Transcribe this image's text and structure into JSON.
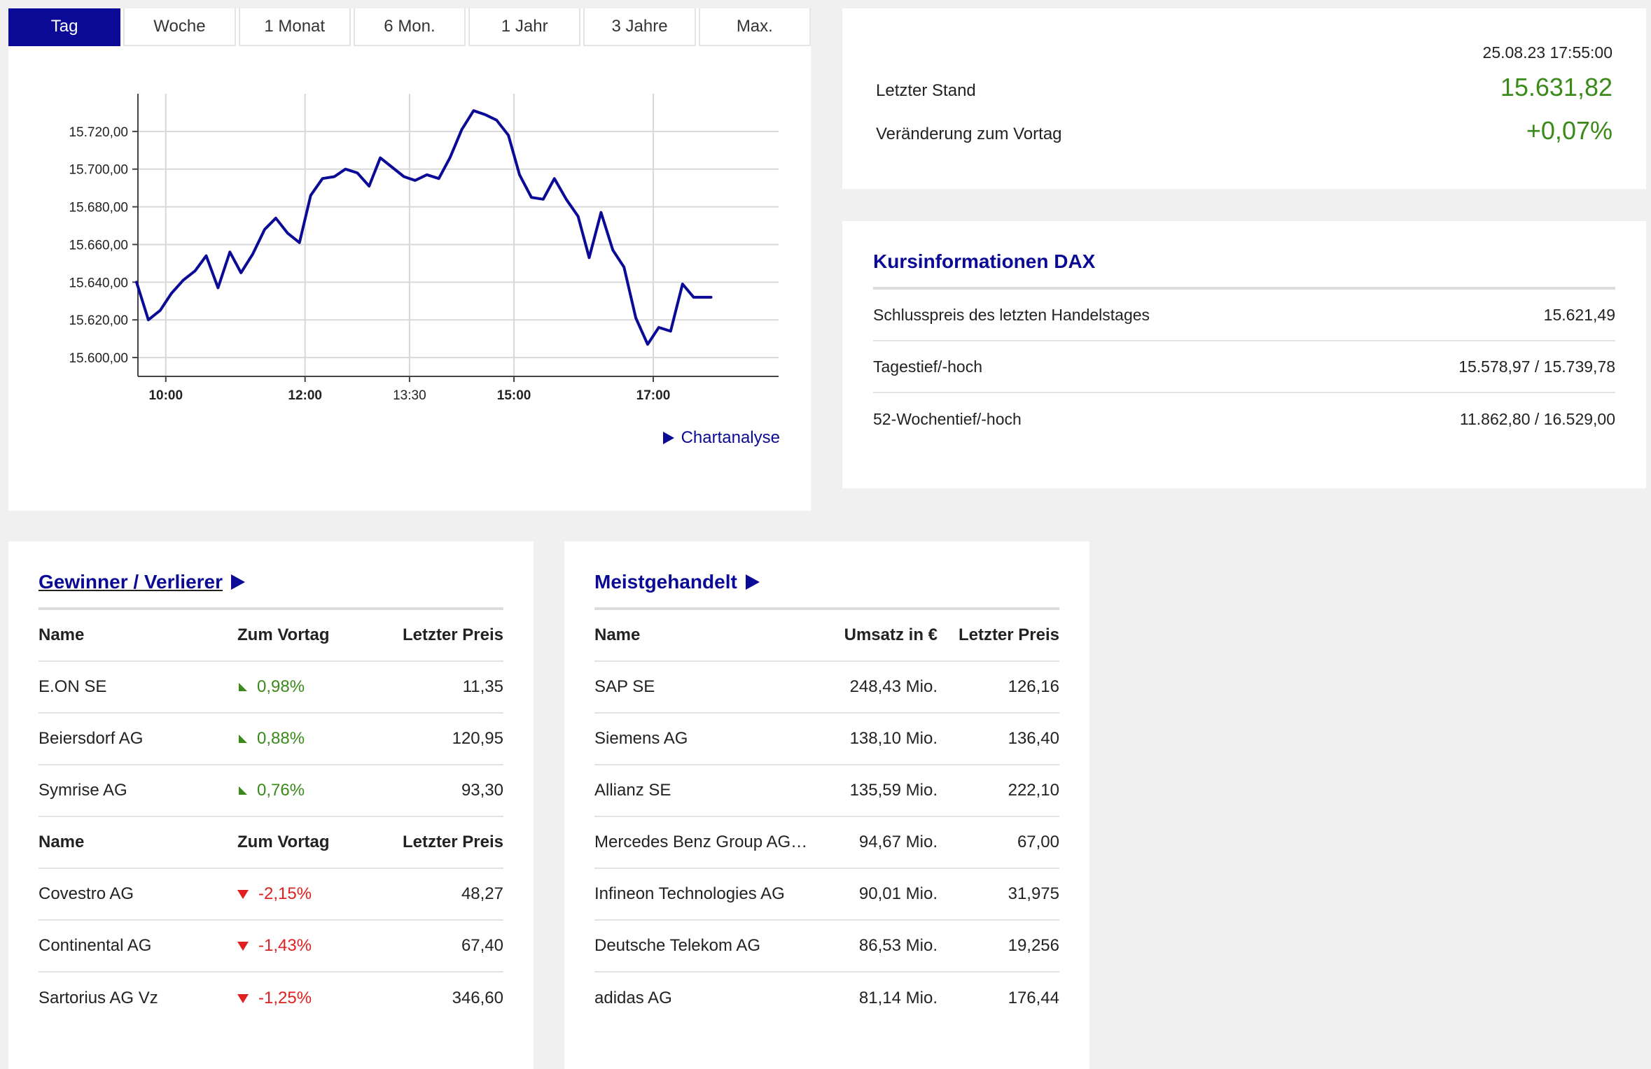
{
  "tabs": [
    "Tag",
    "Woche",
    "1 Monat",
    "6 Mon.",
    "1 Jahr",
    "3 Jahre",
    "Max."
  ],
  "active_tab": 0,
  "chartanalyse_label": "Chartanalyse",
  "chart_data": {
    "type": "line",
    "title": "",
    "xlabel": "",
    "ylabel": "",
    "series_color": "#0a0a96",
    "ylim": [
      15590,
      15740
    ],
    "xlim": [
      9.6,
      18.8
    ],
    "y_ticks": [
      15600,
      15620,
      15640,
      15660,
      15680,
      15700,
      15720
    ],
    "y_tick_labels": [
      "15.600,00",
      "15.620,00",
      "15.640,00",
      "15.660,00",
      "15.680,00",
      "15.700,00",
      "15.720,00"
    ],
    "x_ticks": [
      10,
      12,
      13.5,
      15,
      17
    ],
    "x_tick_labels": [
      "10:00",
      "12:00",
      "13:30",
      "15:00",
      "17:00"
    ],
    "x_tick_bold": [
      true,
      true,
      false,
      true,
      true
    ],
    "grid": true,
    "x": [
      9.58,
      9.75,
      9.92,
      10.08,
      10.25,
      10.42,
      10.58,
      10.75,
      10.92,
      11.08,
      11.25,
      11.42,
      11.58,
      11.75,
      11.92,
      12.08,
      12.25,
      12.42,
      12.58,
      12.75,
      12.92,
      13.08,
      13.25,
      13.42,
      13.58,
      13.75,
      13.92,
      14.08,
      14.25,
      14.42,
      14.58,
      14.75,
      14.92,
      15.08,
      15.25,
      15.42,
      15.58,
      15.75,
      15.92,
      16.08,
      16.25,
      16.42,
      16.58,
      16.75,
      16.92,
      17.08,
      17.25,
      17.42,
      17.58,
      17.75,
      17.83
    ],
    "y": [
      15640,
      15620,
      15625,
      15634,
      15641,
      15646,
      15654,
      15637,
      15656,
      15645,
      15655,
      15668,
      15674,
      15666,
      15661,
      15686,
      15695,
      15696,
      15700,
      15698,
      15691,
      15706,
      15701,
      15696,
      15694,
      15697,
      15695,
      15706,
      15721,
      15731,
      15729,
      15726,
      15718,
      15697,
      15685,
      15684,
      15695,
      15684,
      15675,
      15653,
      15677,
      15657,
      15648,
      15621,
      15607,
      15616,
      15614,
      15639,
      15632,
      15632,
      15632
    ]
  },
  "quote": {
    "timestamp": "25.08.23 17:55:00",
    "last_label": "Letzter Stand",
    "last_value": "15.631,82",
    "change_label": "Veränderung zum Vortag",
    "change_value": "+0,07%"
  },
  "info": {
    "title": "Kursinformationen DAX",
    "rows": [
      {
        "label": "Schlusspreis des letzten Handelstages",
        "value": "15.621,49"
      },
      {
        "label": "Tagestief/-hoch",
        "value": "15.578,97 / 15.739,78"
      },
      {
        "label": "52-Wochentief/-hoch",
        "value": "11.862,80 / 16.529,00"
      }
    ]
  },
  "gainers": {
    "title": "Gewinner / Verlierer",
    "head": {
      "name": "Name",
      "change": "Zum Vortag",
      "price": "Letzter Preis"
    },
    "winners": [
      {
        "name": "E.ON SE",
        "change": "0,98%",
        "price": "11,35"
      },
      {
        "name": "Beiersdorf AG",
        "change": "0,88%",
        "price": "120,95"
      },
      {
        "name": "Symrise AG",
        "change": "0,76%",
        "price": "93,30"
      }
    ],
    "losers": [
      {
        "name": "Covestro AG",
        "change": "-2,15%",
        "price": "48,27"
      },
      {
        "name": "Continental AG",
        "change": "-1,43%",
        "price": "67,40"
      },
      {
        "name": "Sartorius AG Vz",
        "change": "-1,25%",
        "price": "346,60"
      }
    ]
  },
  "traded": {
    "title": "Meistgehandelt",
    "head": {
      "name": "Name",
      "volume": "Umsatz in €",
      "price": "Letzter Preis"
    },
    "rows": [
      {
        "name": "SAP SE",
        "volume": "248,43 Mio.",
        "price": "126,16"
      },
      {
        "name": "Siemens AG",
        "volume": "138,10 Mio.",
        "price": "136,40"
      },
      {
        "name": "Allianz SE",
        "volume": "135,59 Mio.",
        "price": "222,10"
      },
      {
        "name": "Mercedes Benz Group AG …",
        "volume": "94,67 Mio.",
        "price": "67,00"
      },
      {
        "name": "Infineon Technologies AG",
        "volume": "90,01 Mio.",
        "price": "31,975"
      },
      {
        "name": "Deutsche Telekom AG",
        "volume": "86,53 Mio.",
        "price": "19,256"
      },
      {
        "name": "adidas AG",
        "volume": "81,14 Mio.",
        "price": "176,44"
      }
    ]
  }
}
